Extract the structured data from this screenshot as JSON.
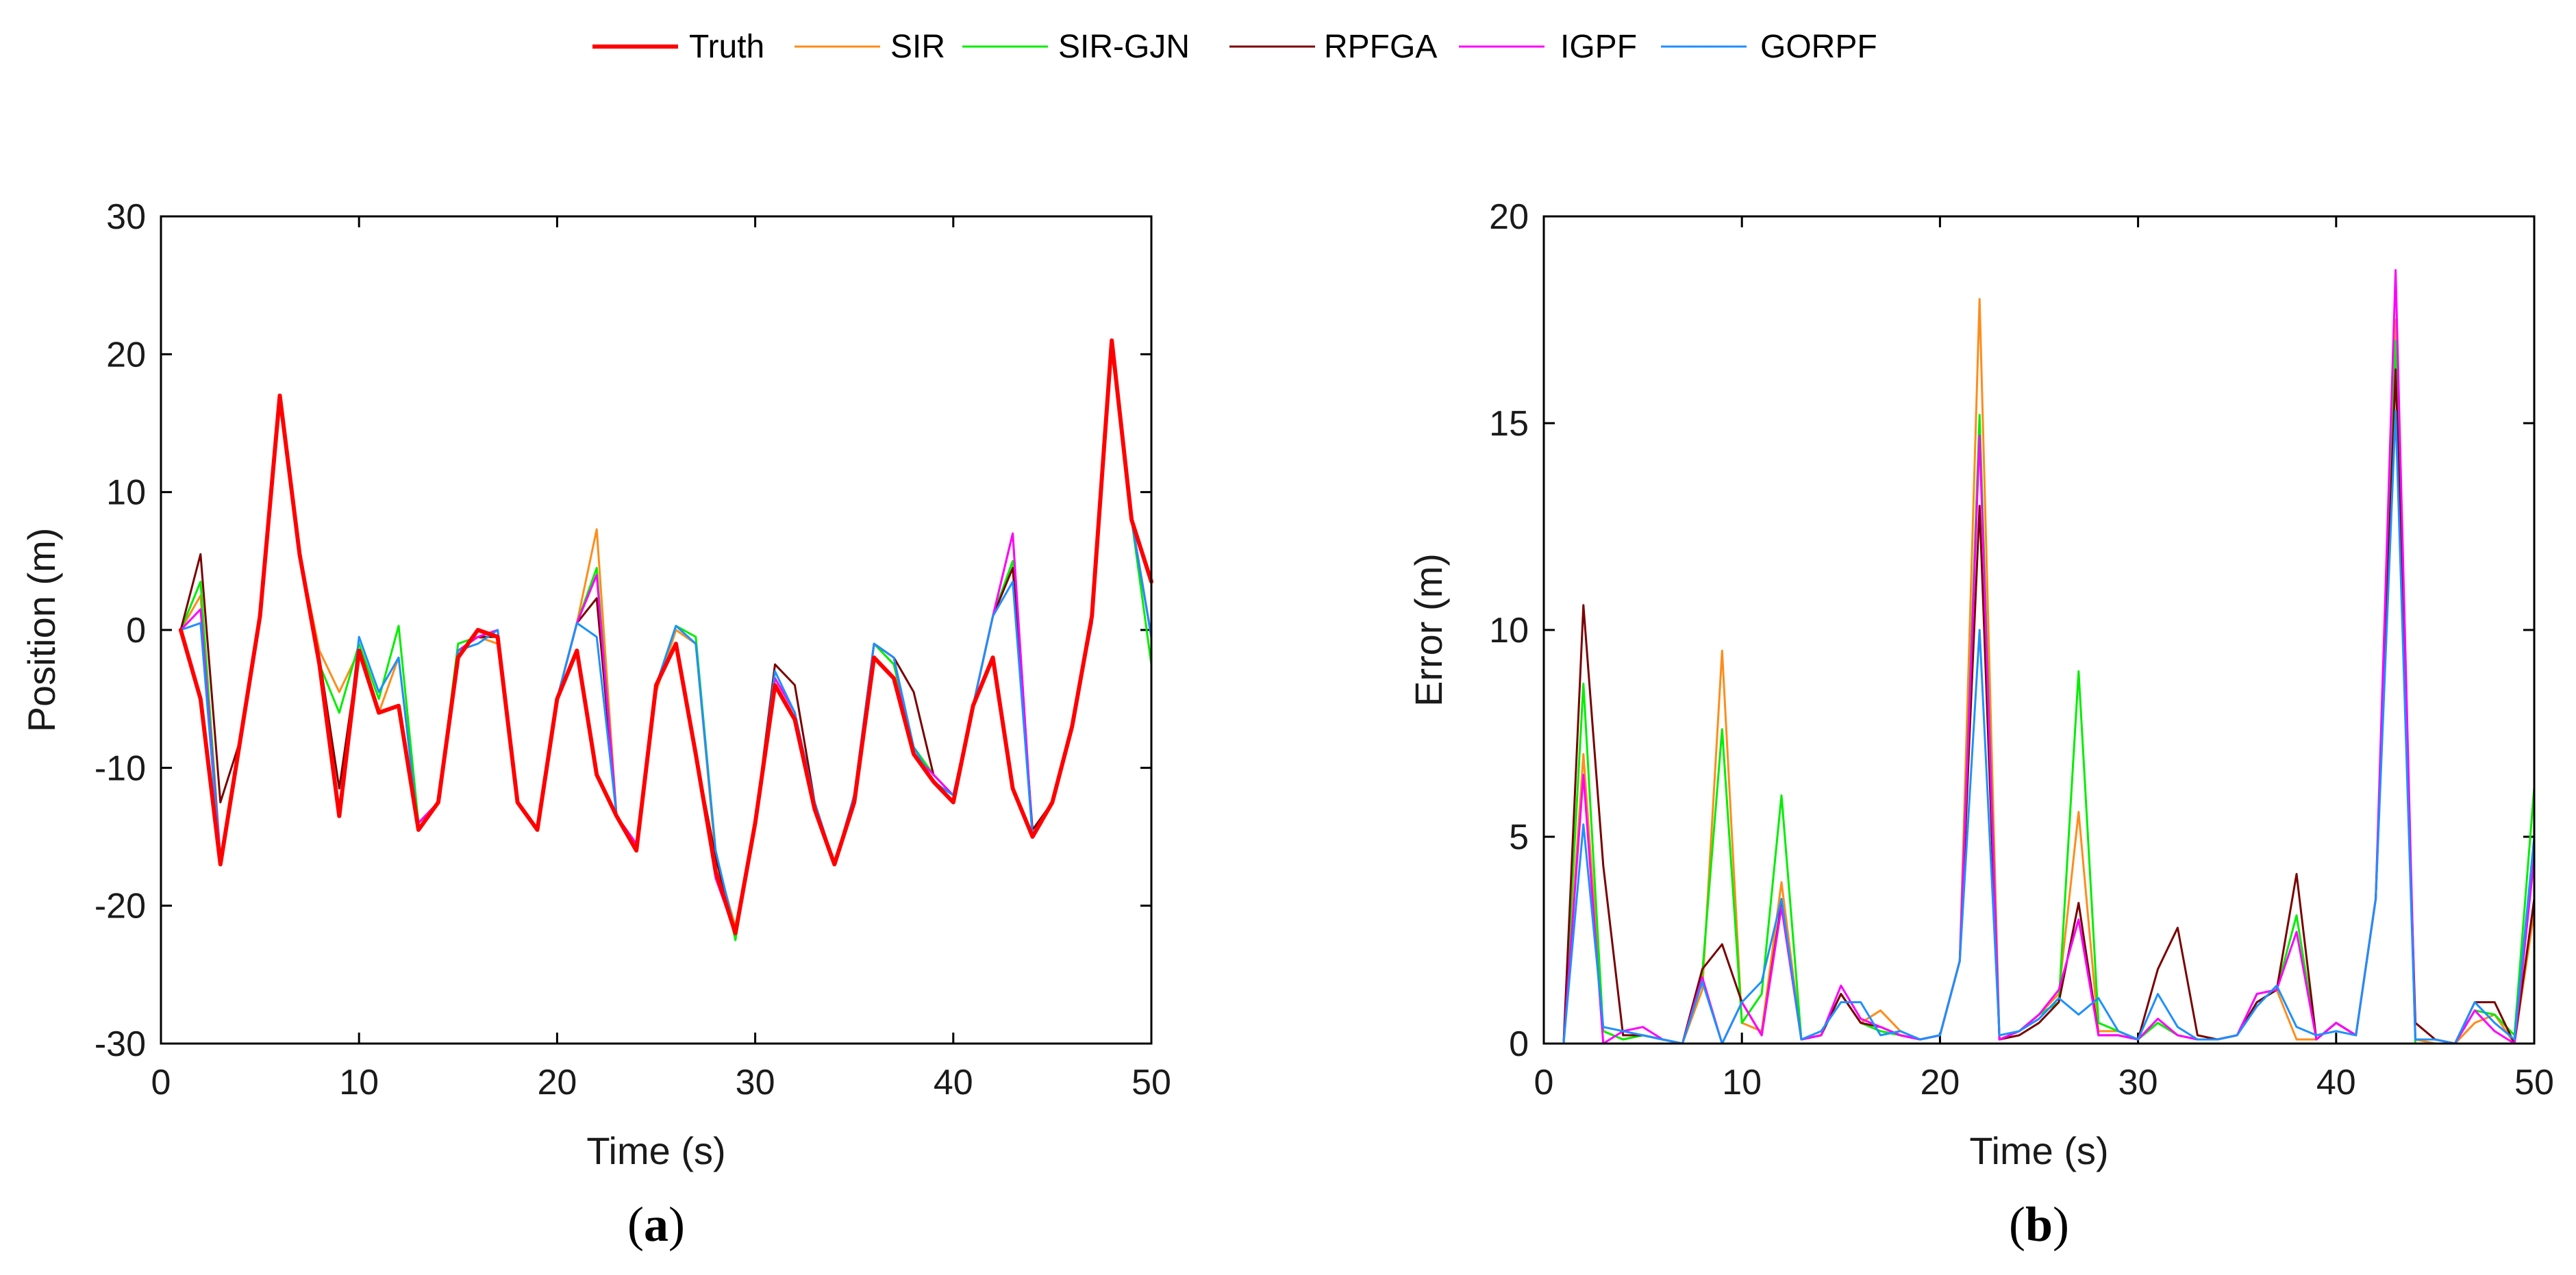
{
  "legend": {
    "entries": [
      {
        "name": "Truth",
        "color": "#ff0000"
      },
      {
        "name": "SIR",
        "color": "#ff8c1a"
      },
      {
        "name": "SIR-GJN",
        "color": "#00ee00"
      },
      {
        "name": "RPFGA",
        "color": "#7a0000"
      },
      {
        "name": "IGPF",
        "color": "#ff00ff"
      },
      {
        "name": "GORPF",
        "color": "#1e90ff"
      }
    ]
  },
  "captions": {
    "a": {
      "open": "(",
      "letter": "a",
      "close": ")"
    },
    "b": {
      "open": "(",
      "letter": "b",
      "close": ")"
    }
  },
  "chart_data": [
    {
      "id": "a",
      "type": "line",
      "title": "",
      "xlabel": "Time (s)",
      "ylabel": "Position (m)",
      "xlim": [
        0,
        50
      ],
      "ylim": [
        -30,
        30
      ],
      "xticks": [
        0,
        10,
        20,
        30,
        40,
        50
      ],
      "yticks": [
        -30,
        -20,
        -10,
        0,
        10,
        20,
        30
      ],
      "x": [
        1,
        2,
        3,
        4,
        5,
        6,
        7,
        8,
        9,
        10,
        11,
        12,
        13,
        14,
        15,
        16,
        17,
        18,
        19,
        20,
        21,
        22,
        23,
        24,
        25,
        26,
        27,
        28,
        29,
        30,
        31,
        32,
        33,
        34,
        35,
        36,
        37,
        38,
        39,
        40,
        41,
        42,
        43,
        44,
        45,
        46,
        47,
        48,
        49,
        50
      ],
      "series": [
        {
          "name": "SIR",
          "values": [
            0,
            2.5,
            -16.5,
            -8,
            1,
            17,
            5.5,
            -1.5,
            -4.5,
            -1.5,
            -6,
            -2,
            -14,
            -12.5,
            -1.5,
            -0.5,
            -1,
            -12.5,
            -14.5,
            -5,
            0.5,
            7.3,
            -13.5,
            -15.5,
            -4.5,
            0,
            -1,
            -16.5,
            -21.5,
            -14,
            -3.5,
            -6,
            -12.5,
            -17,
            -12,
            -1,
            -2.5,
            -8.5,
            -10.5,
            -12,
            -5.5,
            1,
            7,
            -15,
            -12.5,
            -7,
            0.5,
            21,
            8,
            -0.5
          ]
        },
        {
          "name": "SIR-GJN",
          "values": [
            0,
            3.5,
            -16.5,
            -8,
            1,
            17,
            5.5,
            -2.5,
            -6,
            -1,
            -5,
            0.3,
            -14,
            -12.5,
            -1,
            -0.5,
            -0.5,
            -12.5,
            -14.5,
            -5,
            0.5,
            4.5,
            -13.5,
            -15.5,
            -4,
            0.3,
            -0.5,
            -16,
            -22.5,
            -14,
            -3.5,
            -6,
            -12.5,
            -17,
            -12,
            -1,
            -2.5,
            -8.5,
            -10.5,
            -12,
            -5.5,
            1,
            5,
            -15,
            -12.5,
            -7,
            0.5,
            21,
            8,
            -2.5
          ]
        },
        {
          "name": "RPFGA",
          "values": [
            0,
            5.5,
            -12.5,
            -8,
            1,
            17,
            5.5,
            -2,
            -11.5,
            -1.5,
            -6,
            -5.5,
            -14,
            -12.5,
            -1.5,
            -0.5,
            -0.5,
            -12.5,
            -14.5,
            -5,
            0.5,
            2.3,
            -13.5,
            -15.5,
            -4,
            -1,
            -9,
            -16.5,
            -22,
            -14,
            -2.5,
            -4,
            -12.5,
            -17,
            -12,
            -1,
            -2,
            -4.5,
            -10.5,
            -12,
            -5.5,
            1,
            4.5,
            -14.5,
            -12.5,
            -7,
            0.5,
            21,
            8,
            -0.5
          ]
        },
        {
          "name": "IGPF",
          "values": [
            0,
            1.5,
            -16.5,
            -8,
            1,
            17,
            5.5,
            -2,
            -13.5,
            -1.5,
            -6,
            -5.5,
            -14,
            -12.5,
            -1.5,
            -0.5,
            0,
            -12.5,
            -14.5,
            -5,
            0.5,
            4,
            -13.5,
            -15.5,
            -4,
            -1,
            -9,
            -18,
            -22,
            -14,
            -3.5,
            -6,
            -12.5,
            -17,
            -12,
            -1,
            -2,
            -9,
            -10.5,
            -12,
            -5.5,
            1,
            7,
            -15,
            -12.5,
            -7,
            0.5,
            21,
            8,
            -0.5
          ]
        },
        {
          "name": "GORPF",
          "values": [
            0,
            0.5,
            -17,
            -8,
            1,
            17,
            5.5,
            -2,
            -13.5,
            -0.5,
            -4.5,
            -2,
            -14.5,
            -12.5,
            -1.5,
            -1,
            0,
            -12.5,
            -14.5,
            -5,
            0.5,
            -0.5,
            -13.5,
            -16,
            -4,
            0.3,
            -1,
            -16,
            -22,
            -14,
            -3,
            -6,
            -12.5,
            -17,
            -12,
            -1,
            -2,
            -8.5,
            -11,
            -12,
            -5.5,
            1,
            3.5,
            -15,
            -12.5,
            -7,
            0.5,
            20.5,
            8,
            -0.5
          ]
        },
        {
          "name": "Truth",
          "values": [
            0,
            -5,
            -17,
            -8,
            1,
            17,
            5.5,
            -2.5,
            -13.5,
            -1.5,
            -6,
            -5.5,
            -14.5,
            -12.5,
            -2,
            0,
            -0.5,
            -12.5,
            -14.5,
            -5,
            -1.5,
            -10.5,
            -13.5,
            -16,
            -4,
            -1,
            -9,
            -17.5,
            -22,
            -14,
            -4,
            -6.5,
            -13,
            -17,
            -12.5,
            -2,
            -3.5,
            -9,
            -11,
            -12.5,
            -5.5,
            -2,
            -11.5,
            -15,
            -12.5,
            -7,
            1,
            21,
            8,
            3.5
          ]
        }
      ]
    },
    {
      "id": "b",
      "type": "line",
      "title": "",
      "xlabel": "Time (s)",
      "ylabel": "Error (m)",
      "xlim": [
        0,
        50
      ],
      "ylim": [
        0,
        20
      ],
      "xticks": [
        0,
        10,
        20,
        30,
        40,
        50
      ],
      "yticks": [
        0,
        5,
        10,
        15,
        20
      ],
      "x": [
        1,
        2,
        3,
        4,
        5,
        6,
        7,
        8,
        9,
        10,
        11,
        12,
        13,
        14,
        15,
        16,
        17,
        18,
        19,
        20,
        21,
        22,
        23,
        24,
        25,
        26,
        27,
        28,
        29,
        30,
        31,
        32,
        33,
        34,
        35,
        36,
        37,
        38,
        39,
        40,
        41,
        42,
        43,
        44,
        45,
        46,
        47,
        48,
        49,
        50
      ],
      "series": [
        {
          "name": "SIR",
          "values": [
            0,
            7,
            0.3,
            0.1,
            0.2,
            0.1,
            0,
            1.3,
            9.5,
            0.5,
            0.3,
            3.9,
            0.1,
            0.2,
            1.2,
            0.5,
            0.8,
            0.3,
            0.1,
            0.2,
            2,
            18,
            0.1,
            0.3,
            0.7,
            1.2,
            5.6,
            0.3,
            0.3,
            0.1,
            0.5,
            0.2,
            0.1,
            0.1,
            0.2,
            1.2,
            1.3,
            0.1,
            0.1,
            0.5,
            0.2,
            3.5,
            17.5,
            0.1,
            0,
            0,
            0.5,
            0.7,
            0,
            3.2
          ]
        },
        {
          "name": "SIR-GJN",
          "values": [
            0,
            8.7,
            0.3,
            0.1,
            0.2,
            0.1,
            0,
            1.7,
            7.6,
            0.5,
            1.2,
            6,
            0.1,
            0.2,
            1.2,
            0.5,
            0.3,
            0.2,
            0.1,
            0.2,
            2,
            15.2,
            0.1,
            0.3,
            0.7,
            1,
            9,
            0.5,
            0.3,
            0.1,
            0.5,
            0.2,
            0.1,
            0.1,
            0.2,
            1,
            1.3,
            3.1,
            0.1,
            0.5,
            0.2,
            3.5,
            17,
            0,
            0,
            0,
            0.8,
            0.7,
            0.2,
            6.2
          ]
        },
        {
          "name": "RPFGA",
          "values": [
            0,
            10.6,
            4.3,
            0.2,
            0.2,
            0.1,
            0,
            1.8,
            2.4,
            1,
            0.2,
            3.4,
            0.1,
            0.2,
            1.2,
            0.5,
            0.4,
            0.2,
            0.1,
            0.2,
            2,
            13,
            0.1,
            0.2,
            0.5,
            1,
            3.4,
            0.2,
            0.2,
            0.1,
            1.8,
            2.8,
            0.2,
            0.1,
            0.2,
            1,
            1.3,
            4.1,
            0.1,
            0.5,
            0.2,
            3.5,
            16.3,
            0.5,
            0.1,
            0,
            1,
            1,
            0,
            3.5
          ]
        },
        {
          "name": "IGPF",
          "values": [
            0,
            6.5,
            0,
            0.3,
            0.4,
            0.1,
            0,
            1.6,
            0,
            1,
            0.2,
            3.3,
            0.1,
            0.2,
            1.4,
            0.6,
            0.4,
            0.2,
            0.1,
            0.2,
            2,
            14.7,
            0.1,
            0.3,
            0.7,
            1.3,
            3,
            0.2,
            0.2,
            0.1,
            0.6,
            0.2,
            0.1,
            0.1,
            0.2,
            1.2,
            1.3,
            2.7,
            0.1,
            0.5,
            0.2,
            3.5,
            18.7,
            0.1,
            0.1,
            0,
            0.8,
            0.3,
            0,
            4.5
          ]
        },
        {
          "name": "GORPF",
          "values": [
            0,
            5.3,
            0.4,
            0.3,
            0.2,
            0.1,
            0,
            1.5,
            0,
            1,
            1.5,
            3.5,
            0.1,
            0.3,
            1,
            1,
            0.2,
            0.3,
            0.1,
            0.2,
            2,
            10,
            0.2,
            0.3,
            0.6,
            1.1,
            0.7,
            1.1,
            0.3,
            0.1,
            1.2,
            0.4,
            0.1,
            0.1,
            0.2,
            0.9,
            1.4,
            0.4,
            0.2,
            0.3,
            0.2,
            3.5,
            15.3,
            0.1,
            0.1,
            0,
            1,
            0.5,
            0.1,
            5
          ]
        }
      ]
    }
  ]
}
